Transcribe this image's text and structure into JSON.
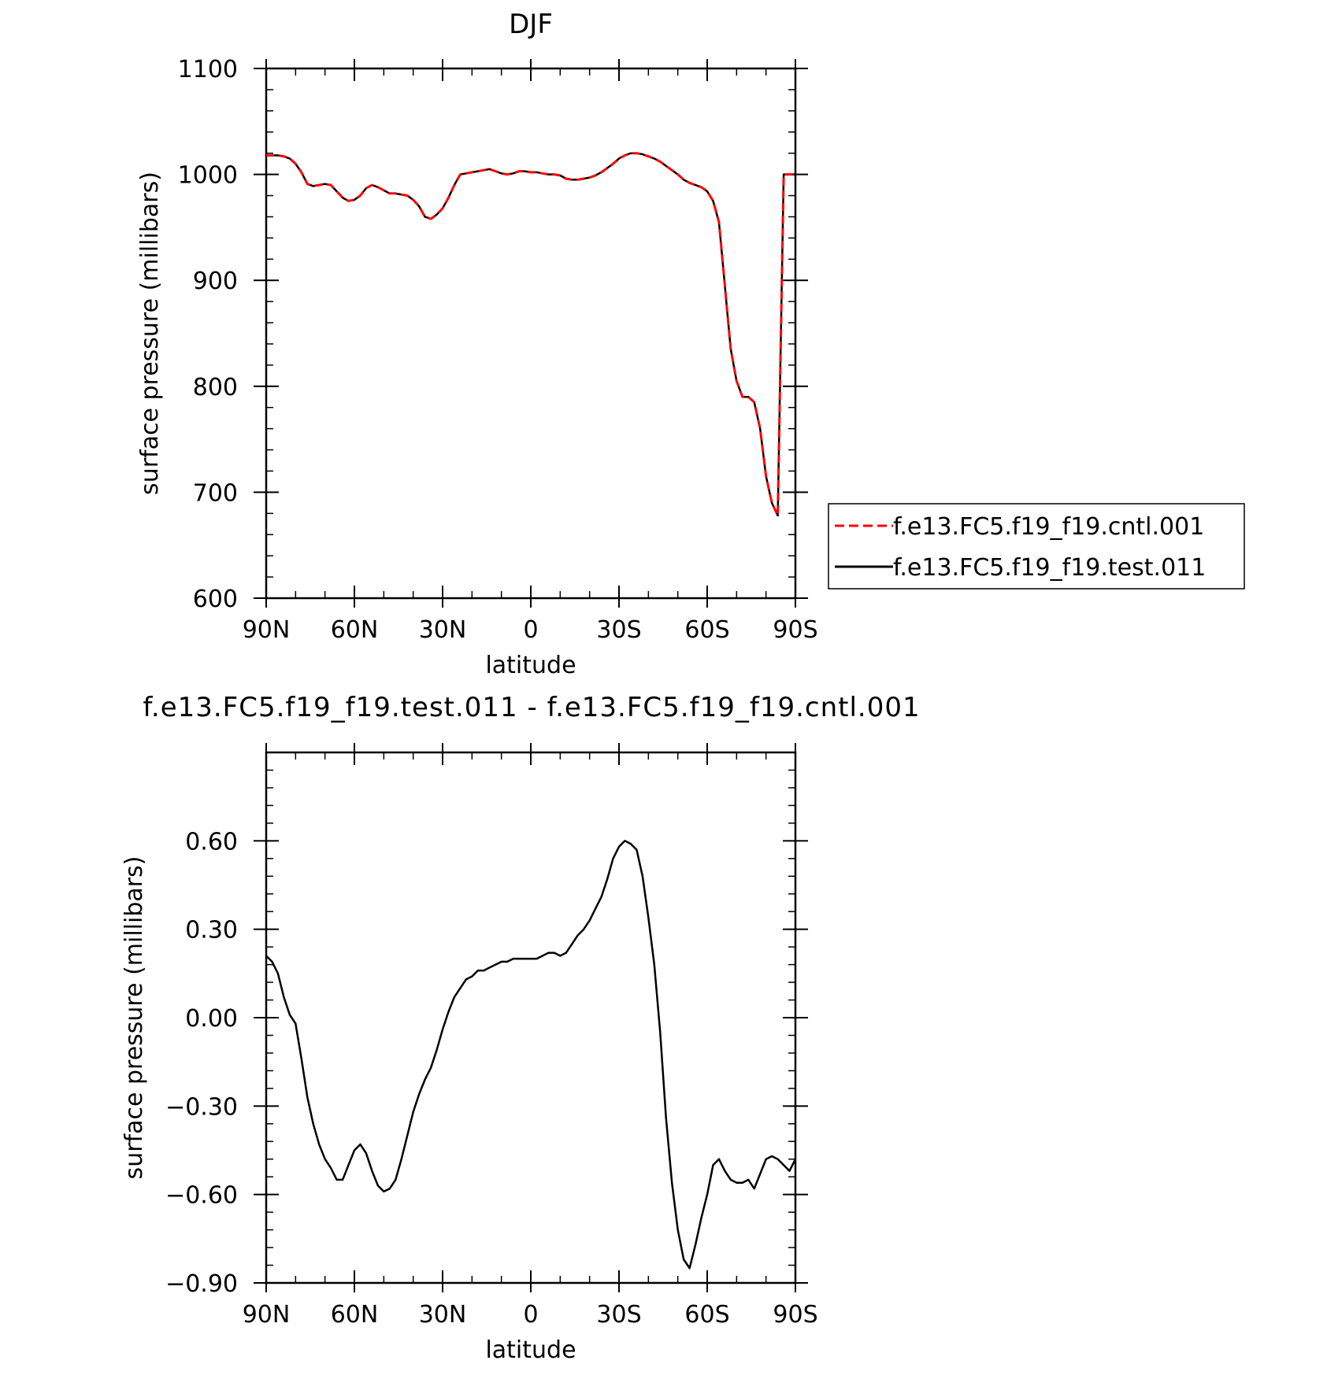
{
  "chart_data": [
    {
      "type": "line",
      "title": "DJF",
      "xlabel": "latitude",
      "ylabel": "surface pressure (millibars)",
      "xlim": [
        90,
        -90
      ],
      "ylim": [
        600,
        1100
      ],
      "xticks": [
        90,
        60,
        30,
        0,
        -30,
        -60,
        -90
      ],
      "xtick_labels": [
        "90N",
        "60N",
        "30N",
        "0",
        "30S",
        "60S",
        "90S"
      ],
      "yticks": [
        600,
        700,
        800,
        900,
        1000,
        1100
      ],
      "ytick_labels": [
        "600",
        "700",
        "800",
        "900",
        "1000",
        "1100"
      ],
      "grid": false,
      "legend_position": "right",
      "series": [
        {
          "name": "f.e13.FC5.f19_f19.cntl.001",
          "color": "#ff0000",
          "style": "dashed",
          "x": [
            90,
            86,
            84,
            82,
            80,
            78,
            76,
            74,
            72,
            70,
            68,
            66,
            64,
            62,
            60,
            58,
            56,
            54,
            52,
            50,
            48,
            46,
            44,
            42,
            40,
            38,
            36,
            34,
            32,
            30,
            28,
            26,
            24,
            22,
            20,
            18,
            16,
            14,
            12,
            10,
            8,
            6,
            4,
            2,
            0,
            -2,
            -4,
            -6,
            -8,
            -10,
            -12,
            -14,
            -16,
            -18,
            -20,
            -22,
            -24,
            -26,
            -28,
            -30,
            -32,
            -34,
            -36,
            -38,
            -40,
            -42,
            -44,
            -46,
            -48,
            -50,
            -52,
            -54,
            -56,
            -58,
            -60,
            -62,
            -64,
            -65,
            -66,
            -67,
            -68,
            -70,
            -72,
            -74,
            -76,
            -78,
            -80,
            -82,
            -84,
            -86,
            -88,
            -90
          ],
          "values": [
            1018,
            1018,
            1017,
            1015,
            1010,
            1002,
            991,
            989,
            990,
            991,
            990,
            984,
            978,
            975,
            976,
            980,
            987,
            990,
            988,
            985,
            982,
            982,
            981,
            980,
            976,
            970,
            960,
            958,
            962,
            968,
            978,
            990,
            1000,
            1001,
            1002,
            1003,
            1004,
            1005,
            1003,
            1001,
            1000,
            1001,
            1003,
            1003,
            1002,
            1002,
            1001,
            1000,
            1000,
            999,
            996,
            995,
            995,
            996,
            997,
            999,
            1002,
            1006,
            1010,
            1015,
            1018,
            1020,
            1020,
            1019,
            1017,
            1015,
            1012,
            1008,
            1004,
            1000,
            995,
            992,
            990,
            988,
            984,
            975,
            955,
            925,
            895,
            865,
            835,
            805,
            790,
            790,
            785,
            760,
            715,
            690,
            678,
            1000,
            1000,
            1000
          ],
          "note_hidden": ""
        },
        {
          "name": "f.e13.FC5.f19_f19.test.011",
          "color": "#000000",
          "style": "solid",
          "x": [],
          "values": []
        }
      ]
    },
    {
      "type": "line",
      "title": "f.e13.FC5.f19_f19.test.011 - f.e13.FC5.f19_f19.cntl.001",
      "xlabel": "latitude",
      "ylabel": "surface pressure (millibars)",
      "xlim": [
        90,
        -90
      ],
      "ylim": [
        -0.9,
        0.9
      ],
      "xticks": [
        90,
        60,
        30,
        0,
        -30,
        -60,
        -90
      ],
      "xtick_labels": [
        "90N",
        "60N",
        "30N",
        "0",
        "30S",
        "60S",
        "90S"
      ],
      "yticks": [
        -0.9,
        -0.6,
        -0.3,
        0.0,
        0.3,
        0.6
      ],
      "ytick_labels": [
        "−0.90",
        "−0.60",
        "−0.30",
        "0.00",
        "0.30",
        "0.60"
      ],
      "grid": false,
      "series": [
        {
          "color": "#000000",
          "style": "solid",
          "x": [
            90,
            88,
            86,
            84,
            82,
            80,
            78,
            76,
            74,
            72,
            70,
            68,
            66,
            64,
            62,
            60,
            58,
            56,
            54,
            52,
            50,
            48,
            46,
            44,
            42,
            40,
            38,
            36,
            34,
            32,
            30,
            28,
            26,
            24,
            22,
            20,
            18,
            16,
            14,
            12,
            10,
            8,
            6,
            4,
            2,
            0,
            -2,
            -4,
            -6,
            -8,
            -10,
            -12,
            -14,
            -16,
            -18,
            -20,
            -22,
            -24,
            -26,
            -28,
            -30,
            -32,
            -34,
            -36,
            -38,
            -40,
            -42,
            -44,
            -46,
            -48,
            -50,
            -52,
            -54,
            -56,
            -58,
            -60,
            -62,
            -64,
            -66,
            -68,
            -70,
            -72,
            -74,
            -76,
            -78,
            -80,
            -82,
            -84,
            -86,
            -88,
            -90
          ],
          "values": [
            0.21,
            0.19,
            0.15,
            0.07,
            0.01,
            -0.02,
            -0.14,
            -0.27,
            -0.36,
            -0.43,
            -0.48,
            -0.51,
            -0.55,
            -0.55,
            -0.5,
            -0.45,
            -0.43,
            -0.46,
            -0.52,
            -0.57,
            -0.59,
            -0.58,
            -0.55,
            -0.48,
            -0.4,
            -0.32,
            -0.26,
            -0.21,
            -0.17,
            -0.11,
            -0.04,
            0.02,
            0.07,
            0.1,
            0.13,
            0.14,
            0.16,
            0.16,
            0.17,
            0.18,
            0.19,
            0.19,
            0.2,
            0.2,
            0.2,
            0.2,
            0.2,
            0.21,
            0.22,
            0.22,
            0.21,
            0.22,
            0.25,
            0.28,
            0.3,
            0.33,
            0.37,
            0.41,
            0.47,
            0.54,
            0.58,
            0.6,
            0.59,
            0.57,
            0.48,
            0.34,
            0.18,
            -0.05,
            -0.34,
            -0.56,
            -0.72,
            -0.82,
            -0.85,
            -0.77,
            -0.68,
            -0.6,
            -0.5,
            -0.48,
            -0.52,
            -0.55,
            -0.56,
            -0.56,
            -0.55,
            -0.58,
            -0.53,
            -0.48,
            -0.47,
            -0.48,
            -0.5,
            -0.52,
            -0.48
          ]
        }
      ]
    }
  ]
}
